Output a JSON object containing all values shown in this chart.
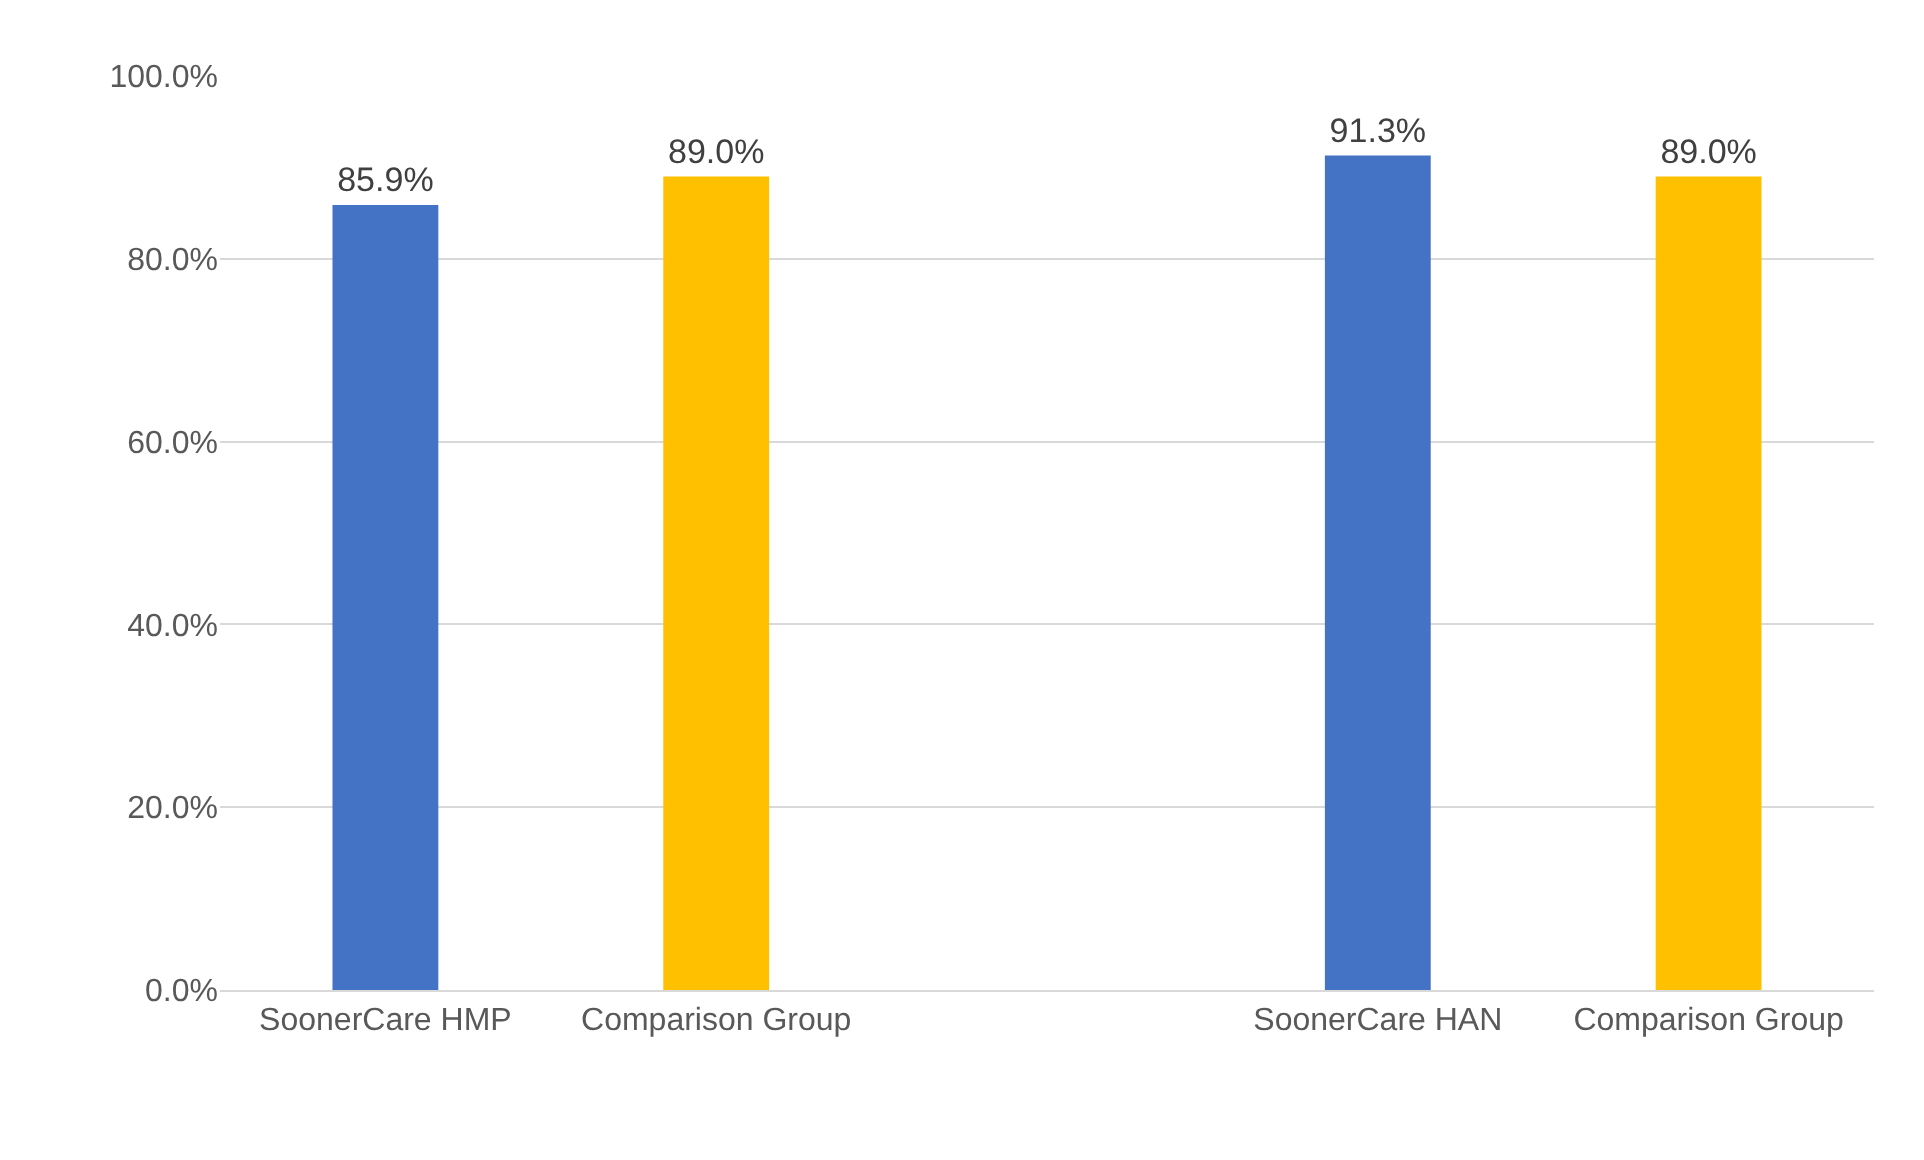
{
  "chart_data": {
    "type": "bar",
    "categories": [
      "SoonerCare HMP",
      "Comparison Group",
      null,
      "SoonerCare HAN",
      "Comparison Group"
    ],
    "values": [
      85.9,
      89.0,
      null,
      91.3,
      89.0
    ],
    "value_labels": [
      "85.9%",
      "89.0%",
      null,
      "91.3%",
      "89.0%"
    ],
    "colors": [
      "#4472c4",
      "#ffc000",
      "#ffffff",
      "#4472c4",
      "#ffc000"
    ],
    "ylim": [
      0,
      100
    ],
    "yticks": [
      {
        "value": 0,
        "label": "0.0%"
      },
      {
        "value": 20,
        "label": "20.0%"
      },
      {
        "value": 40,
        "label": "40.0%"
      },
      {
        "value": 60,
        "label": "60.0%"
      },
      {
        "value": 80,
        "label": "80.0%"
      },
      {
        "value": 100,
        "label": "100.0%"
      }
    ],
    "grid": "y",
    "legend": false
  }
}
